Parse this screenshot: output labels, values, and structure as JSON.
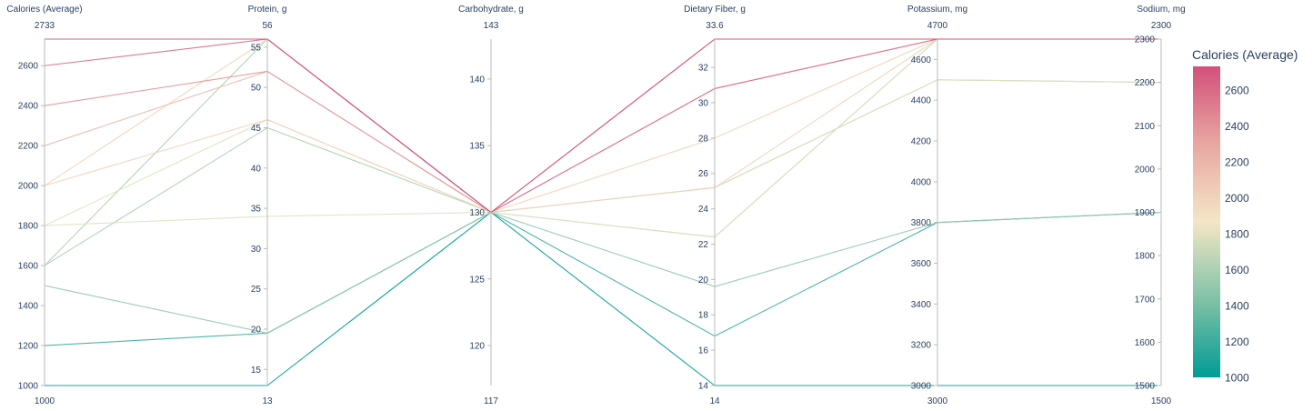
{
  "chart_data": {
    "type": "parallel_coordinates",
    "axes": [
      {
        "name": "Calories (Average)",
        "range": [
          1000,
          2733
        ],
        "range_labels": [
          "1000",
          "2733"
        ],
        "ticks": [
          1000,
          1200,
          1400,
          1600,
          1800,
          2000,
          2200,
          2400,
          2600
        ],
        "tick_labels": [
          "1000",
          "1200",
          "1400",
          "1600",
          "1800",
          "2000",
          "2200",
          "2400",
          "2600"
        ]
      },
      {
        "name": "Protein, g",
        "range": [
          13,
          56
        ],
        "range_labels": [
          "13",
          "56"
        ],
        "ticks": [
          15,
          20,
          25,
          30,
          35,
          40,
          45,
          50,
          55
        ],
        "tick_labels": [
          "15",
          "20",
          "25",
          "30",
          "35",
          "40",
          "45",
          "50",
          "55"
        ]
      },
      {
        "name": "Carbohydrate, g",
        "range": [
          117,
          143
        ],
        "range_labels": [
          "117",
          "143"
        ],
        "ticks": [
          120,
          125,
          130,
          135,
          140
        ],
        "tick_labels": [
          "120",
          "125",
          "130",
          "135",
          "140"
        ]
      },
      {
        "name": "Dietary Fiber, g",
        "range": [
          14,
          33.6
        ],
        "range_labels": [
          "14",
          "33.6"
        ],
        "ticks": [
          14,
          16,
          18,
          20,
          22,
          24,
          26,
          28,
          30,
          32
        ],
        "tick_labels": [
          "14",
          "16",
          "18",
          "20",
          "22",
          "24",
          "26",
          "28",
          "30",
          "32"
        ]
      },
      {
        "name": "Potassium, mg",
        "range": [
          3000,
          4700
        ],
        "range_labels": [
          "3000",
          "4700"
        ],
        "ticks": [
          3000,
          3200,
          3400,
          3600,
          3800,
          4000,
          4200,
          4400,
          4600
        ],
        "tick_labels": [
          "3000",
          "3200",
          "3400",
          "3600",
          "3800",
          "4000",
          "4200",
          "4400",
          "4600"
        ]
      },
      {
        "name": "Sodium, mg",
        "range": [
          1500,
          2300
        ],
        "range_labels": [
          "1500",
          "2300"
        ],
        "ticks": [
          1500,
          1600,
          1700,
          1800,
          1900,
          2000,
          2100,
          2200,
          2300
        ],
        "tick_labels": [
          "1500",
          "1600",
          "1700",
          "1800",
          "1900",
          "2000",
          "2100",
          "2200",
          "2300"
        ]
      }
    ],
    "rows": [
      [
        1000,
        13,
        130,
        14,
        3000,
        1500
      ],
      [
        1200,
        19.5,
        130,
        16.8,
        3800,
        1900
      ],
      [
        1500,
        19.5,
        130,
        19.6,
        3800,
        1900
      ],
      [
        1600,
        45,
        130,
        22.4,
        4700,
        2300
      ],
      [
        1600,
        56,
        130,
        25.2,
        4500,
        2200
      ],
      [
        1800,
        34,
        130,
        25.2,
        4500,
        2200
      ],
      [
        1800,
        46,
        130,
        22.4,
        4700,
        2300
      ],
      [
        2000,
        46,
        130,
        25.2,
        4700,
        2300
      ],
      [
        2000,
        56,
        130,
        28,
        4700,
        2300
      ],
      [
        2200,
        52,
        130,
        30.8,
        4700,
        2300
      ],
      [
        2400,
        52,
        130,
        33.6,
        4700,
        2300
      ],
      [
        2600,
        56,
        130,
        30.8,
        4700,
        2300
      ],
      [
        2733,
        56,
        130,
        33.6,
        4700,
        2300
      ]
    ],
    "colorbar": {
      "title": "Calories (Average)",
      "range": [
        1000,
        2733
      ],
      "ticks": [
        1000,
        1200,
        1400,
        1600,
        1800,
        2000,
        2200,
        2400,
        2600
      ],
      "tick_labels": [
        "1000",
        "1200",
        "1400",
        "1600",
        "1800",
        "2000",
        "2200",
        "2400",
        "2600"
      ],
      "colorscale": [
        "#009B95",
        "#80C2A6",
        "#F3E6C6",
        "#E8A7A2",
        "#D1507B"
      ]
    }
  }
}
